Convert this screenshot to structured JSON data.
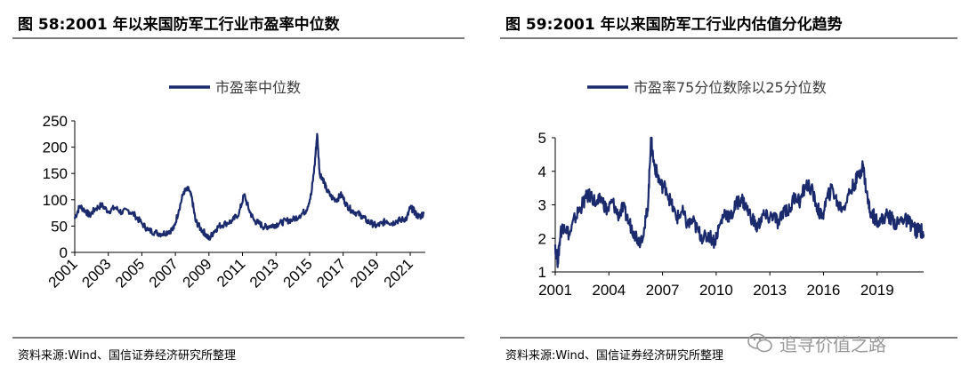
{
  "left_panel": {
    "title": "图 58:2001 年以来国防军工行业市盈率中位数",
    "source": "资料来源:Wind、国信证券经济研究所整理"
  },
  "right_panel": {
    "title": "图 59:2001 年以来国防军工行业内估值分化趋势",
    "source": "资料来源:Wind、国信证券经济研究所整理"
  },
  "watermark": {
    "text": "追寻价值之路",
    "icon": "wechat-icon"
  },
  "colors": {
    "series": "#1a2a6c",
    "rule": "#7a7a7a"
  },
  "chart_data": [
    {
      "type": "line",
      "legend": "市盈率中位数",
      "legend_position": "top-center",
      "grid": false,
      "xlim": [
        2001,
        2021.9
      ],
      "ylim": [
        0,
        250
      ],
      "xticks": [
        "2001",
        "2003",
        "2005",
        "2007",
        "2009",
        "2011",
        "2013",
        "2015",
        "2017",
        "2019",
        "2021"
      ],
      "yticks": [
        "0",
        "50",
        "100",
        "150",
        "200",
        "250"
      ],
      "series": [
        {
          "name": "市盈率中位数",
          "x": [
            2001.0,
            2001.3,
            2001.6,
            2001.9,
            2002.2,
            2002.6,
            2003.0,
            2003.4,
            2003.8,
            2004.2,
            2004.6,
            2005.0,
            2005.4,
            2005.8,
            2006.2,
            2006.6,
            2006.9,
            2007.2,
            2007.5,
            2007.8,
            2008.0,
            2008.2,
            2008.5,
            2008.8,
            2009.0,
            2009.3,
            2009.6,
            2010.0,
            2010.4,
            2010.8,
            2011.1,
            2011.4,
            2011.7,
            2012.0,
            2012.3,
            2012.6,
            2012.9,
            2013.2,
            2013.6,
            2014.0,
            2014.4,
            2014.8,
            2015.1,
            2015.3,
            2015.45,
            2015.6,
            2015.8,
            2016.0,
            2016.3,
            2016.6,
            2016.9,
            2017.2,
            2017.5,
            2017.8,
            2018.1,
            2018.4,
            2018.7,
            2019.0,
            2019.3,
            2019.6,
            2019.9,
            2020.2,
            2020.5,
            2020.8,
            2021.0,
            2021.2,
            2021.4,
            2021.6,
            2021.8
          ],
          "values": [
            65,
            88,
            80,
            70,
            82,
            90,
            78,
            85,
            76,
            80,
            70,
            55,
            42,
            38,
            35,
            40,
            45,
            80,
            115,
            120,
            100,
            60,
            45,
            35,
            25,
            40,
            50,
            55,
            60,
            75,
            110,
            80,
            60,
            55,
            48,
            50,
            52,
            55,
            60,
            62,
            70,
            80,
            110,
            165,
            225,
            150,
            140,
            120,
            105,
            100,
            110,
            90,
            80,
            75,
            70,
            60,
            55,
            50,
            55,
            60,
            55,
            60,
            62,
            65,
            85,
            80,
            70,
            68,
            75
          ]
        }
      ]
    },
    {
      "type": "line",
      "legend": "市盈率75分位数除以25分位数",
      "legend_position": "top-center",
      "grid": false,
      "xlim": [
        2001,
        2021.6
      ],
      "ylim": [
        1,
        5
      ],
      "xticks": [
        "2001",
        "2004",
        "2007",
        "2010",
        "2013",
        "2016",
        "2019"
      ],
      "yticks": [
        "1",
        "2",
        "3",
        "4",
        "5"
      ],
      "series": [
        {
          "name": "市盈率75分位数除以25分位数",
          "x": [
            2001.0,
            2001.15,
            2001.3,
            2001.5,
            2001.8,
            2002.1,
            2002.4,
            2002.7,
            2003.0,
            2003.3,
            2003.6,
            2003.9,
            2004.2,
            2004.5,
            2004.8,
            2005.1,
            2005.4,
            2005.7,
            2006.0,
            2006.2,
            2006.35,
            2006.5,
            2006.7,
            2006.9,
            2007.2,
            2007.5,
            2007.8,
            2008.1,
            2008.4,
            2008.7,
            2009.0,
            2009.3,
            2009.6,
            2009.9,
            2010.2,
            2010.5,
            2010.8,
            2011.1,
            2011.4,
            2011.7,
            2012.0,
            2012.3,
            2012.6,
            2012.9,
            2013.2,
            2013.5,
            2013.8,
            2014.1,
            2014.4,
            2014.7,
            2015.0,
            2015.3,
            2015.6,
            2015.9,
            2016.2,
            2016.5,
            2016.8,
            2017.1,
            2017.4,
            2017.7,
            2018.0,
            2018.2,
            2018.4,
            2018.6,
            2018.9,
            2019.2,
            2019.5,
            2019.8,
            2020.1,
            2020.4,
            2020.7,
            2021.0,
            2021.2,
            2021.4,
            2021.6
          ],
          "values": [
            1.8,
            1.3,
            2.2,
            2.4,
            2.1,
            2.6,
            2.9,
            3.2,
            3.3,
            3.0,
            3.2,
            2.8,
            3.1,
            2.7,
            2.9,
            2.5,
            2.2,
            1.9,
            2.3,
            3.1,
            5.0,
            4.3,
            3.9,
            3.6,
            3.5,
            3.0,
            2.6,
            2.8,
            2.4,
            2.5,
            2.2,
            2.0,
            2.1,
            1.9,
            2.4,
            2.8,
            2.6,
            3.0,
            3.2,
            2.9,
            2.6,
            2.3,
            2.7,
            2.6,
            2.7,
            2.4,
            2.9,
            2.8,
            3.3,
            3.1,
            3.6,
            3.5,
            3.0,
            2.6,
            3.2,
            3.5,
            3.0,
            2.9,
            3.3,
            3.6,
            3.9,
            4.2,
            3.4,
            2.8,
            2.6,
            2.5,
            2.7,
            2.6,
            2.4,
            2.6,
            2.5,
            2.4,
            2.2,
            2.3,
            2.1
          ]
        }
      ]
    }
  ]
}
